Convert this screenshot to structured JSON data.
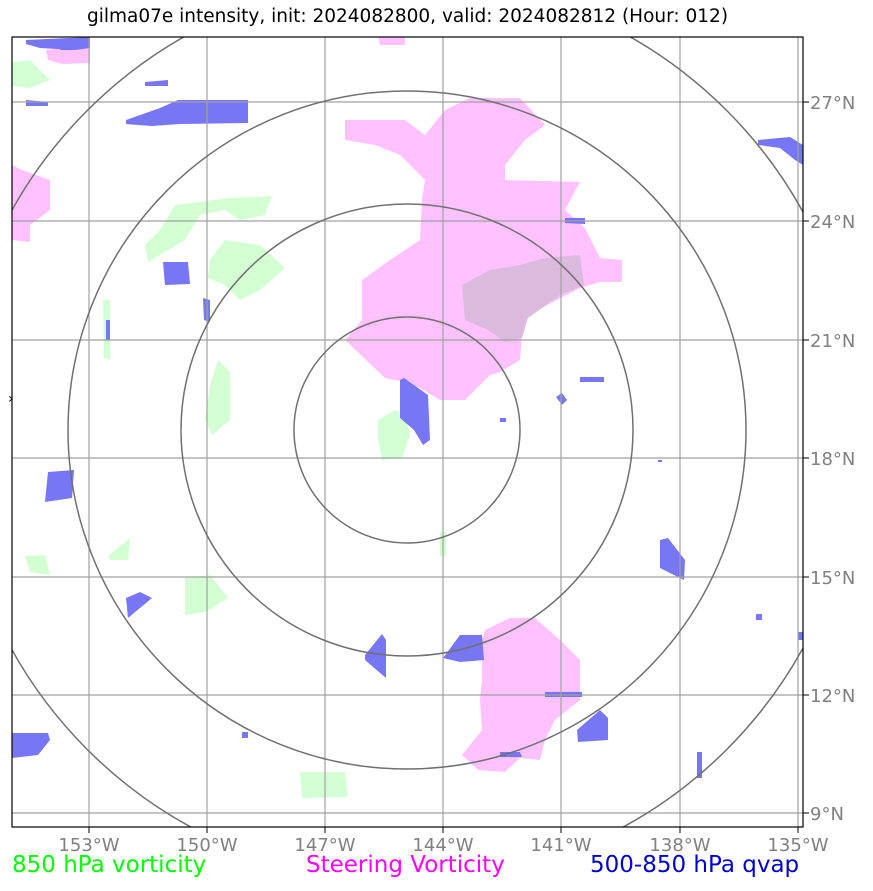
{
  "title": "gilma07e intensity, init: 2024082800, valid: 2024082812 (Hour: 012)",
  "axes": {
    "lon_labels": [
      "153°W",
      "150°W",
      "147°W",
      "144°W",
      "141°W",
      "138°W",
      "135°W"
    ],
    "lat_labels": [
      "27°N",
      "24°N",
      "21°N",
      "18°N",
      "15°N",
      "12°N",
      "9°N"
    ]
  },
  "legend": [
    {
      "label": "850 hPa vorticity",
      "color": "#00ff00"
    },
    {
      "label": "Steering Vorticity",
      "color": "#ff00ff"
    },
    {
      "label": "500-850 hPa qvap",
      "color": "#0000cc"
    }
  ],
  "colors": {
    "vort850_fill": "#ccffcc",
    "steering_fill": "#ffbbff",
    "qvap_fill": "#7070f5",
    "grid": "#808080",
    "range_ring": "#707070"
  }
}
